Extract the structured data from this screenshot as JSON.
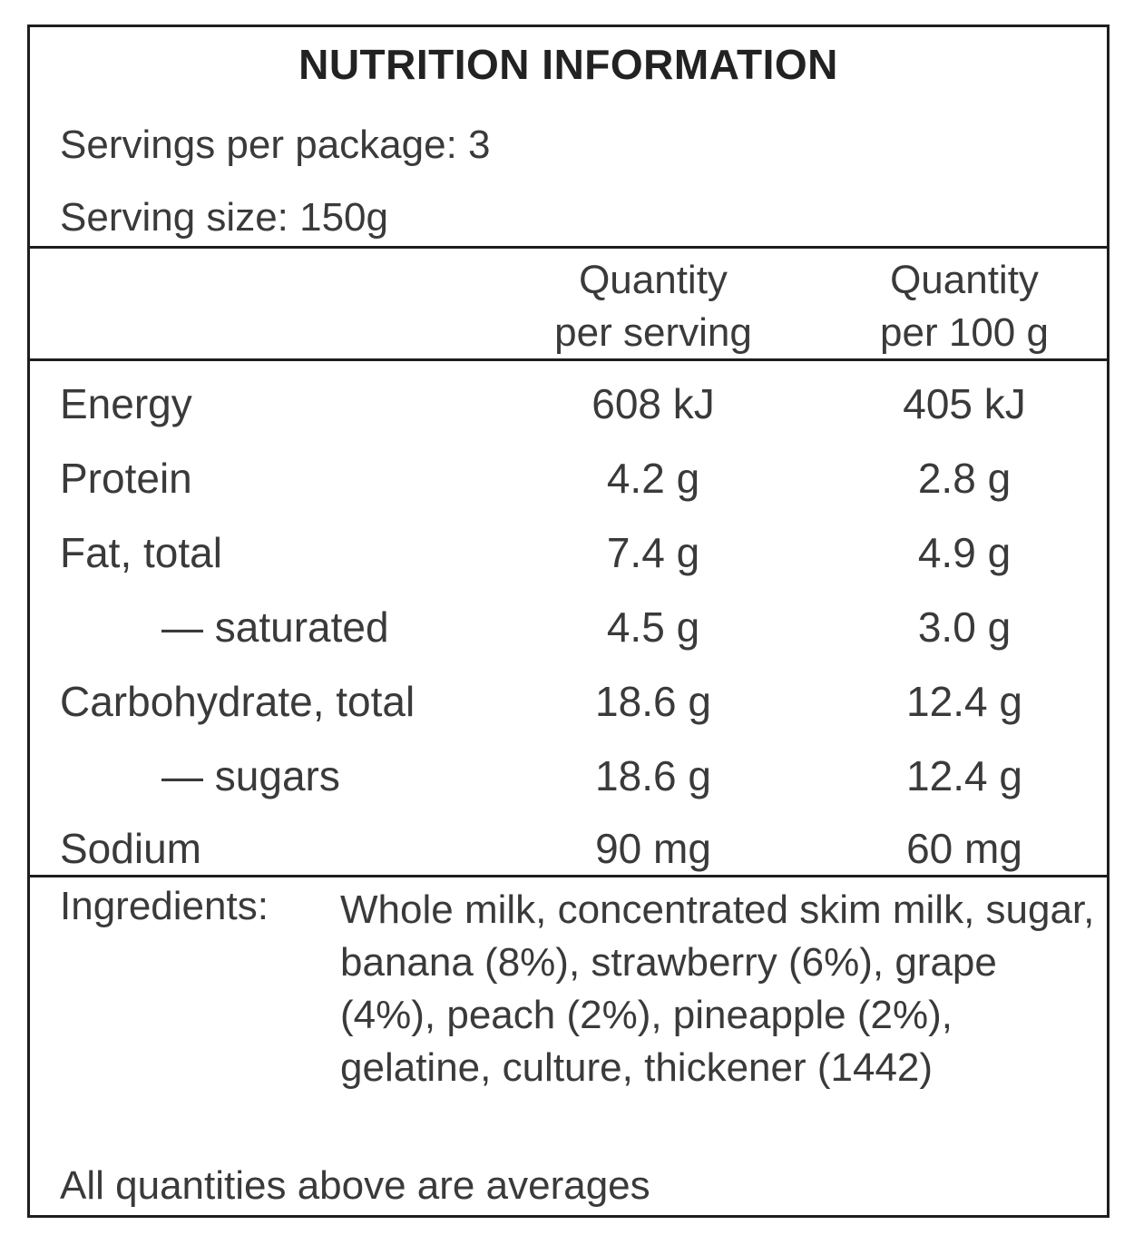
{
  "panel": {
    "title": "NUTRITION INFORMATION",
    "servings_per_package": "Servings per package:  3",
    "serving_size": "Serving size:  150g"
  },
  "columns": {
    "per_serving": [
      "Quantity",
      "per serving"
    ],
    "per_100g": [
      "Quantity",
      "per 100 g"
    ]
  },
  "rows": [
    {
      "label": "Energy",
      "per_serving": "608 kJ",
      "per_100g": "405 kJ",
      "sub": false
    },
    {
      "label": "Protein",
      "per_serving": "4.2 g",
      "per_100g": "2.8 g",
      "sub": false
    },
    {
      "label": "Fat, total",
      "per_serving": "7.4 g",
      "per_100g": "4.9 g",
      "sub": false
    },
    {
      "label": "— saturated",
      "per_serving": "4.5 g",
      "per_100g": "3.0 g",
      "sub": true
    },
    {
      "label": "Carbohydrate, total",
      "per_serving": "18.6 g",
      "per_100g": "12.4 g",
      "sub": false
    },
    {
      "label": "— sugars",
      "per_serving": "18.6 g",
      "per_100g": "12.4 g",
      "sub": true
    },
    {
      "label": "Sodium",
      "per_serving": "90 mg",
      "per_100g": "60 mg",
      "sub": false
    }
  ],
  "ingredients": {
    "label": "Ingredients:",
    "text": "Whole milk, concentrated skim milk, sugar, banana (8%), strawberry (6%), grape (4%), peach (2%), pineapple (2%), gelatine, culture, thickener (1442)"
  },
  "footer": "All quantities above are averages"
}
